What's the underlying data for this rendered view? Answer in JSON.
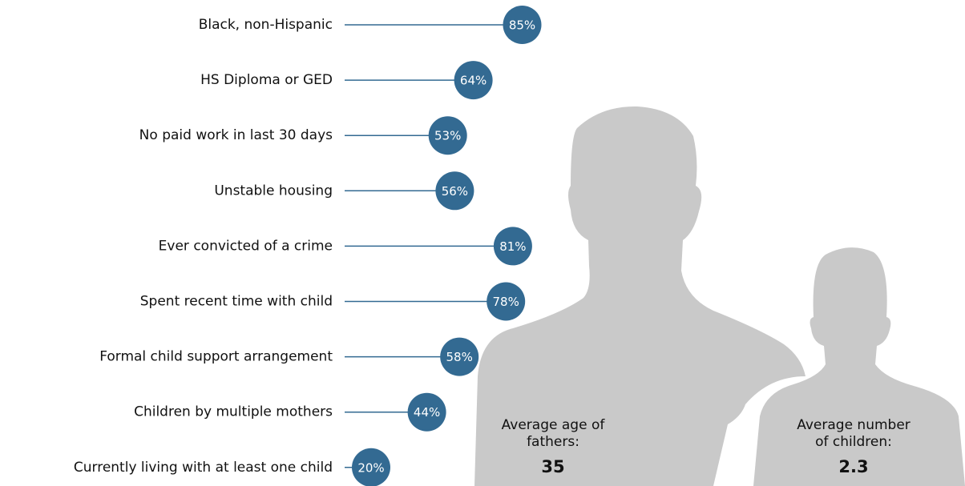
{
  "chart_data": {
    "type": "lollipop",
    "categories": [
      "Black, non-Hispanic",
      "HS Diploma or GED",
      "No paid work in last 30 days",
      "Unstable housing",
      "Ever convicted of a crime",
      "Spent recent time with child",
      "Formal child support arrangement",
      "Children by multiple mothers",
      "Currently living with at least one child"
    ],
    "values": [
      85,
      64,
      53,
      56,
      81,
      78,
      58,
      44,
      20
    ],
    "value_labels": [
      "85%",
      "64%",
      "53%",
      "56%",
      "81%",
      "78%",
      "58%",
      "44%",
      "20%"
    ],
    "color": "#336a92",
    "annotations": [
      {
        "label": "Average age of fathers:",
        "value": 35
      },
      {
        "label": "Average number of children:",
        "value": 2.3
      }
    ]
  }
}
